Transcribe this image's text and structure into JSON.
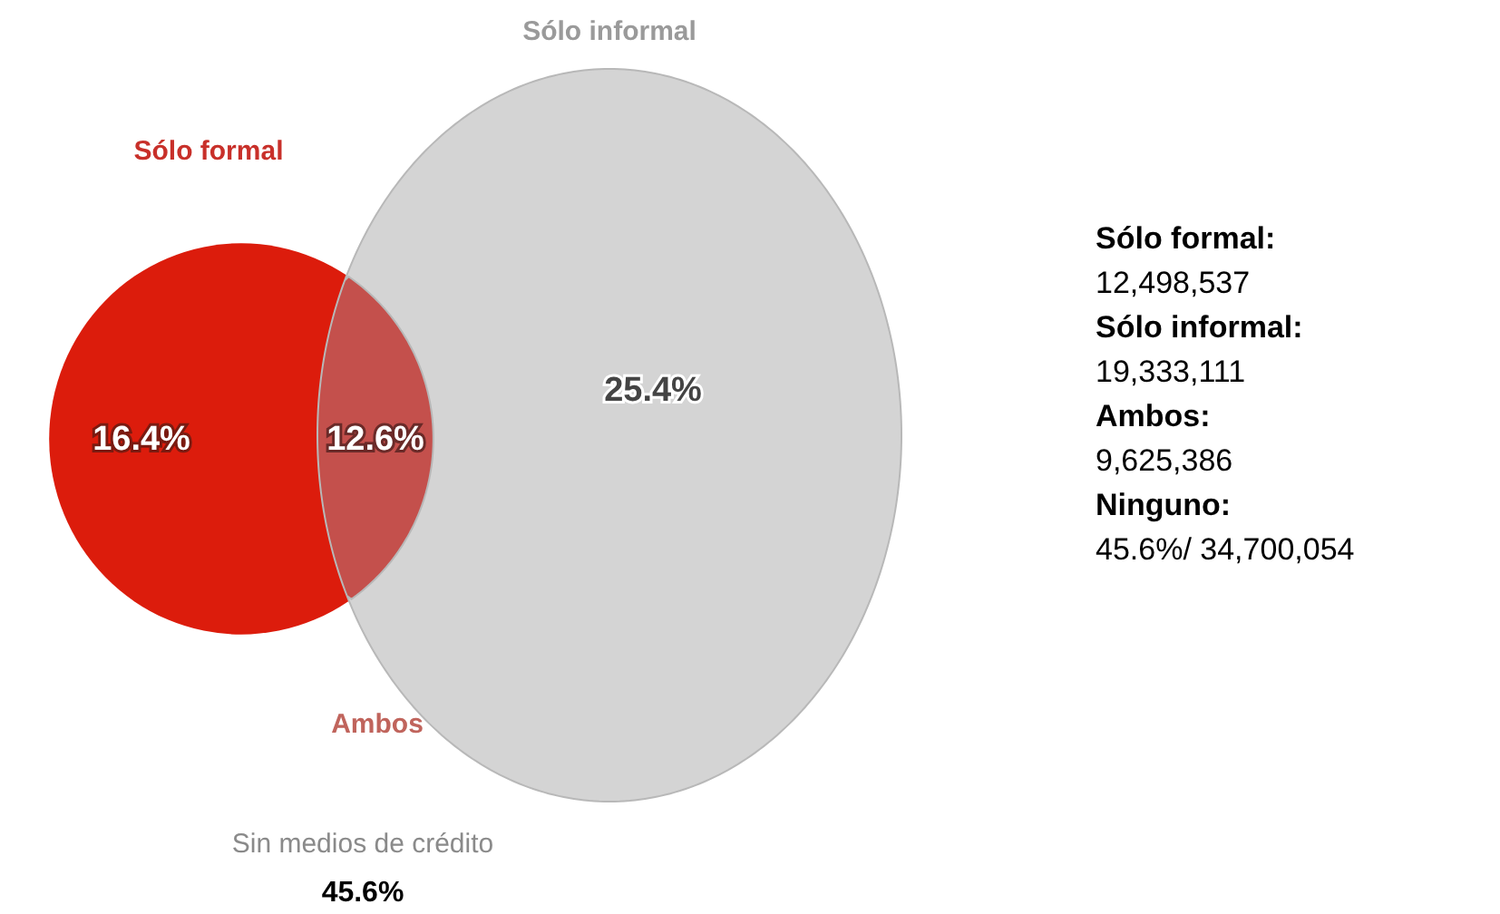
{
  "chart_data": {
    "type": "other",
    "categories": [
      "Sólo formal",
      "Ambos",
      "Sólo informal"
    ],
    "values": [
      16.4,
      12.6,
      25.4
    ],
    "value_labels": [
      "16.4%",
      "12.6%",
      "25.4%"
    ],
    "colors": [
      "#dc1c0c",
      "#c4504c",
      "#d4d4d4"
    ],
    "annotations": [
      "Sólo formal:",
      "12,498,537",
      "Sólo informal:",
      "19,333,111",
      "Ambos:",
      "9,625,386",
      "Ninguno:",
      "45.6%/ 34,700,054",
      "Sin medios de crédito",
      "45.6%"
    ]
  }
}
